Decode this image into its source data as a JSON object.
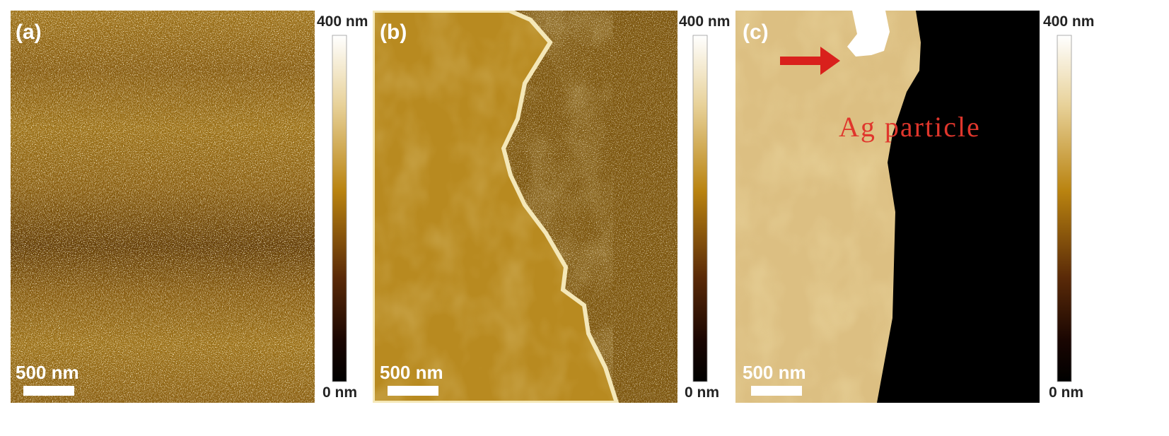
{
  "panels": [
    {
      "label": "(a)",
      "scale_bar": "500 nm",
      "colorbar": {
        "max": "400 nm",
        "min": "0 nm"
      }
    },
    {
      "label": "(b)",
      "scale_bar": "500 nm",
      "colorbar": {
        "max": "400 nm",
        "min": "0 nm"
      }
    },
    {
      "label": "(c)",
      "scale_bar": "500 nm",
      "colorbar": {
        "max": "400 nm",
        "min": "0 nm"
      }
    }
  ],
  "annotation": "Ag particle"
}
